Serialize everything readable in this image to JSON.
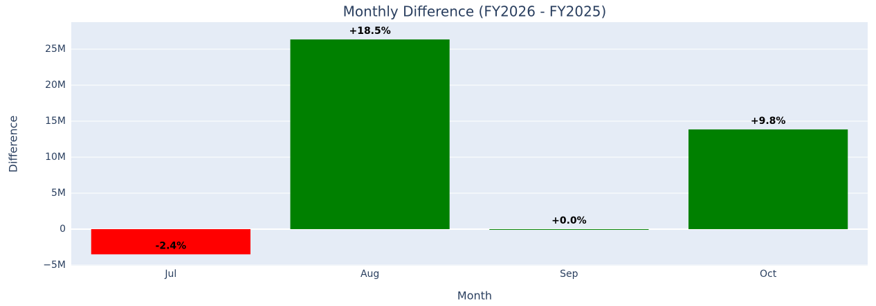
{
  "chart_data": {
    "type": "bar",
    "title": "Monthly Difference (FY2026 - FY2025)",
    "x_label": "Month",
    "y_label": "Difference",
    "categories": [
      "Jul",
      "Aug",
      "Sep",
      "Oct"
    ],
    "values": [
      -3500000,
      26350000,
      0,
      13850000
    ],
    "bar_labels": [
      "-2.4%",
      "+18.5%",
      "+0.0%",
      "+9.8%"
    ],
    "colors": [
      "#ff0000",
      "#008000",
      "#008000",
      "#008000"
    ],
    "ylim": [
      -5100000,
      28750000
    ],
    "yticks": [
      {
        "value": -5000000,
        "label": "−5M"
      },
      0,
      {
        "value": 5000000,
        "label": "5M"
      },
      {
        "value": 10000000,
        "label": "10M"
      },
      {
        "value": 15000000,
        "label": "15M"
      },
      {
        "value": 20000000,
        "label": "20M"
      },
      {
        "value": 25000000,
        "label": "25M"
      }
    ],
    "grid": true
  }
}
